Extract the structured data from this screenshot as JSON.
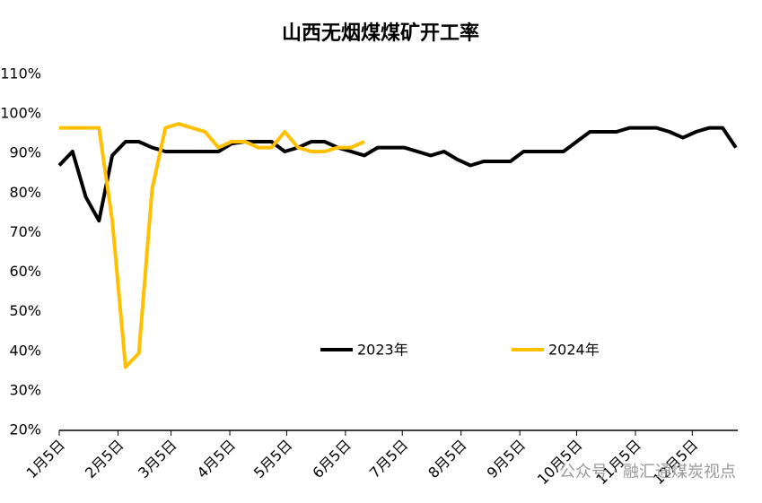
{
  "chart_data": {
    "type": "line",
    "title": "山西无烟煤煤矿开工率",
    "x": [
      5,
      12,
      19,
      26,
      33,
      40,
      47,
      54,
      61,
      68,
      75,
      82,
      89,
      96,
      103,
      110,
      117,
      124,
      131,
      138,
      145,
      152,
      159,
      166,
      173,
      180,
      187,
      194,
      201,
      208,
      215,
      222,
      229,
      236,
      243,
      250,
      257,
      264,
      271,
      278,
      285,
      292,
      299,
      306,
      313,
      320,
      327,
      334,
      341,
      348,
      355,
      362
    ],
    "series": [
      {
        "name": "2023年",
        "color": "#000000",
        "values": [
          87,
          90.5,
          79,
          73,
          89.5,
          93,
          93,
          91.5,
          90.5,
          90.5,
          90.5,
          90.5,
          90.5,
          92.5,
          93,
          93,
          93,
          90.5,
          91.5,
          93,
          93,
          91.5,
          90.5,
          89.5,
          91.5,
          91.5,
          91.5,
          90.5,
          89.5,
          90.5,
          88.5,
          87,
          88,
          88,
          88,
          90.5,
          90.5,
          90.5,
          90.5,
          93,
          95.5,
          95.5,
          95.5,
          96.5,
          96.5,
          96.5,
          95.5,
          94,
          95.5,
          96.5,
          96.5,
          91.5
        ]
      },
      {
        "name": "2024年",
        "color": "#ffc000",
        "values": [
          96.5,
          96.5,
          96.5,
          96.5,
          73,
          36,
          39.5,
          81,
          96.5,
          97.5,
          96.5,
          95.5,
          91.5,
          93,
          93,
          91.5,
          91.5,
          95.5,
          91.5,
          90.5,
          90.5,
          91.5,
          91.5,
          93,
          null,
          null,
          null,
          null,
          null,
          null,
          null,
          null,
          null,
          null,
          null,
          null,
          null,
          null,
          null,
          null,
          null,
          null,
          null,
          null,
          null,
          null,
          null,
          null,
          null,
          null,
          null,
          null
        ]
      }
    ],
    "xlim": [
      5,
      363
    ],
    "xticks": [
      {
        "value": 5,
        "label": "1月5日"
      },
      {
        "value": 36,
        "label": "2月5日"
      },
      {
        "value": 64,
        "label": "3月5日"
      },
      {
        "value": 95,
        "label": "4月5日"
      },
      {
        "value": 125,
        "label": "5月5日"
      },
      {
        "value": 156,
        "label": "6月5日"
      },
      {
        "value": 186,
        "label": "7月5日"
      },
      {
        "value": 217,
        "label": "8月5日"
      },
      {
        "value": 248,
        "label": "9月5日"
      },
      {
        "value": 278,
        "label": "10月5日"
      },
      {
        "value": 309,
        "label": "11月5日"
      },
      {
        "value": 339,
        "label": "12月5日"
      }
    ],
    "ylim": [
      20,
      110
    ],
    "yticks": [
      {
        "value": 20,
        "label": "20%"
      },
      {
        "value": 30,
        "label": "30%"
      },
      {
        "value": 40,
        "label": "40%"
      },
      {
        "value": 50,
        "label": "50%"
      },
      {
        "value": 60,
        "label": "60%"
      },
      {
        "value": 70,
        "label": "70%"
      },
      {
        "value": 80,
        "label": "80%"
      },
      {
        "value": 90,
        "label": "90%"
      },
      {
        "value": 100,
        "label": "100%"
      },
      {
        "value": 110,
        "label": "110%"
      }
    ],
    "grid": false,
    "watermark": "公众号 · 融汇通煤炭视点"
  }
}
